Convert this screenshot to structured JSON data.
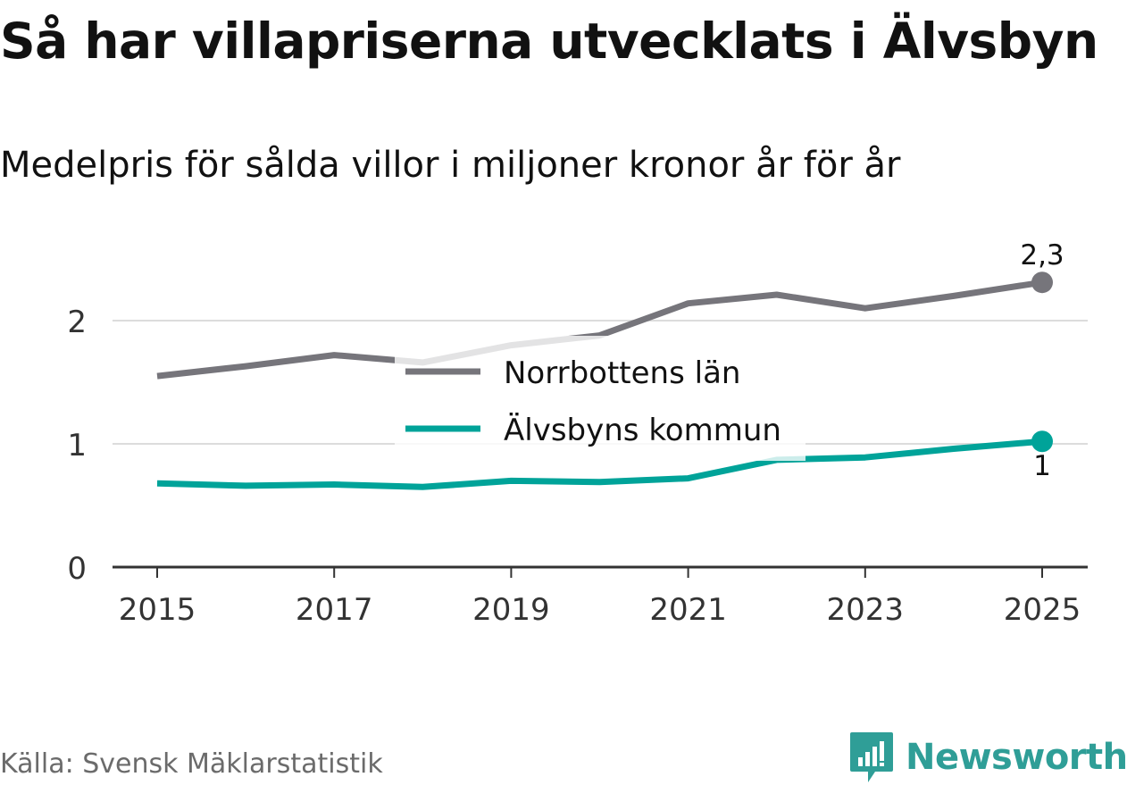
{
  "title": "Så har villapriserna utvecklats i Älvsbyn",
  "subtitle": "Medelpris för sålda villor i miljoner kronor år för år",
  "source": "Källa: Svensk Mäklarstatistik",
  "brand": "Newsworthy",
  "colors": {
    "county": "#76757b",
    "municipality": "#00a399",
    "grid": "#dcdcdc",
    "axis": "#333333",
    "brand": "#2f9e97"
  },
  "chart_data": {
    "type": "line",
    "title": "Så har villapriserna utvecklats i Älvsbyn",
    "subtitle": "Medelpris för sålda villor i miljoner kronor år för år",
    "xlabel": "",
    "ylabel": "",
    "x": [
      2015,
      2016,
      2017,
      2018,
      2019,
      2020,
      2021,
      2022,
      2023,
      2024,
      2025
    ],
    "x_ticks": [
      "2015",
      "2017",
      "2019",
      "2021",
      "2023",
      "2025"
    ],
    "x_tick_values": [
      2015,
      2017,
      2019,
      2021,
      2023,
      2025
    ],
    "y_ticks": [
      "0",
      "1",
      "2"
    ],
    "y_tick_values": [
      0,
      1,
      2
    ],
    "ylim": [
      0,
      2.5
    ],
    "xlim": [
      2014.5,
      2025.5
    ],
    "grid": true,
    "legend_position": "center",
    "series": [
      {
        "name": "Norrbottens län",
        "color_key": "county",
        "values": [
          1.55,
          1.63,
          1.72,
          1.66,
          1.8,
          1.88,
          2.14,
          2.21,
          2.1,
          2.2,
          2.31
        ],
        "end_label": "2,3"
      },
      {
        "name": "Älvsbyns kommun",
        "color_key": "municipality",
        "values": [
          0.68,
          0.66,
          0.67,
          0.65,
          0.7,
          0.69,
          0.72,
          0.87,
          0.89,
          0.96,
          1.02
        ],
        "end_label": "1"
      }
    ]
  }
}
